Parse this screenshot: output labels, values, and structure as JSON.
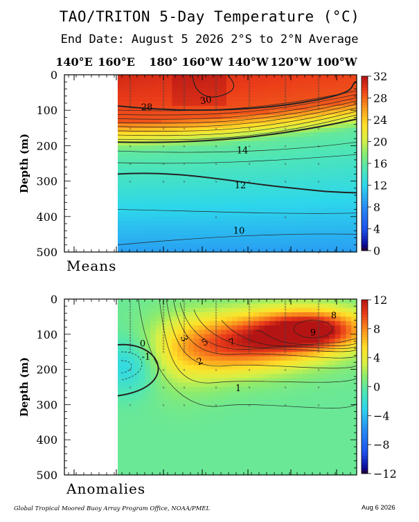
{
  "title": "TAO/TRITON 5-Day Temperature (°C)",
  "subtitle": "End Date: August 5 2026   2°S to 2°N Average",
  "footer": "Global Tropical Moored Buoy Array Program Office, NOAA/PMEL",
  "date_stamp": "Aug  6 2026",
  "chart_data": [
    {
      "type": "heatmap",
      "panel_label": "Means",
      "xlabel": "",
      "ylabel": "Depth (m)",
      "x_ticks": [
        "140°E",
        "160°E",
        "180°",
        "160°W",
        "140°W",
        "120°W",
        "100°W"
      ],
      "x_range": [
        "~125°E",
        "~83°W"
      ],
      "data_start_lon": "160°E",
      "ylim": [
        500,
        0
      ],
      "y_ticks": [
        0,
        100,
        200,
        300,
        400,
        500
      ],
      "colorbar": {
        "min": 0,
        "max": 32,
        "ticks": [
          0,
          4,
          8,
          12,
          16,
          20,
          24,
          28,
          32
        ]
      },
      "contour_labels": [
        {
          "value": "30",
          "lon": "~165°W",
          "depth": 80
        },
        {
          "value": "28",
          "lon": "~165°E",
          "depth": 95
        },
        {
          "value": "14",
          "lon": "~145°W",
          "depth": 210
        },
        {
          "value": "12",
          "lon": "~145°W",
          "depth": 315
        },
        {
          "value": "10",
          "lon": "~145°W",
          "depth": 440
        }
      ],
      "profile_depths": [
        100,
        150,
        200,
        300,
        400,
        500
      ],
      "profile_temps": [
        28,
        22,
        16,
        12,
        10,
        9
      ]
    },
    {
      "type": "heatmap",
      "panel_label": "Anomalies",
      "xlabel": "",
      "ylabel": "Depth (m)",
      "x_ticks": [
        "140°E",
        "160°E",
        "180°",
        "160°W",
        "140°W",
        "120°W",
        "100°W"
      ],
      "ylim": [
        500,
        0
      ],
      "y_ticks": [
        0,
        100,
        200,
        300,
        400,
        500
      ],
      "colorbar": {
        "min": -12,
        "max": 12,
        "ticks": [
          12,
          8,
          4,
          0,
          -4,
          -8,
          -12
        ]
      },
      "contour_labels": [
        {
          "value": "0",
          "lon": "~165°E",
          "depth": 130
        },
        {
          "value": "-1",
          "lon": "~165°E",
          "depth": 165
        },
        {
          "value": "3",
          "lon": "~177°E",
          "depth": 115
        },
        {
          "value": "5",
          "lon": "~160°W",
          "depth": 130
        },
        {
          "value": "7",
          "lon": "~150°W",
          "depth": 130
        },
        {
          "value": "2",
          "lon": "~172°W",
          "depth": 185
        },
        {
          "value": "1",
          "lon": "~158°W",
          "depth": 255
        },
        {
          "value": "9",
          "lon": "~103°W",
          "depth": 100
        },
        {
          "value": "8",
          "lon": "~95°W",
          "depth": 55
        }
      ],
      "max_anomaly": {
        "value": 9,
        "lon": "~103°W",
        "depth": 90
      }
    }
  ]
}
